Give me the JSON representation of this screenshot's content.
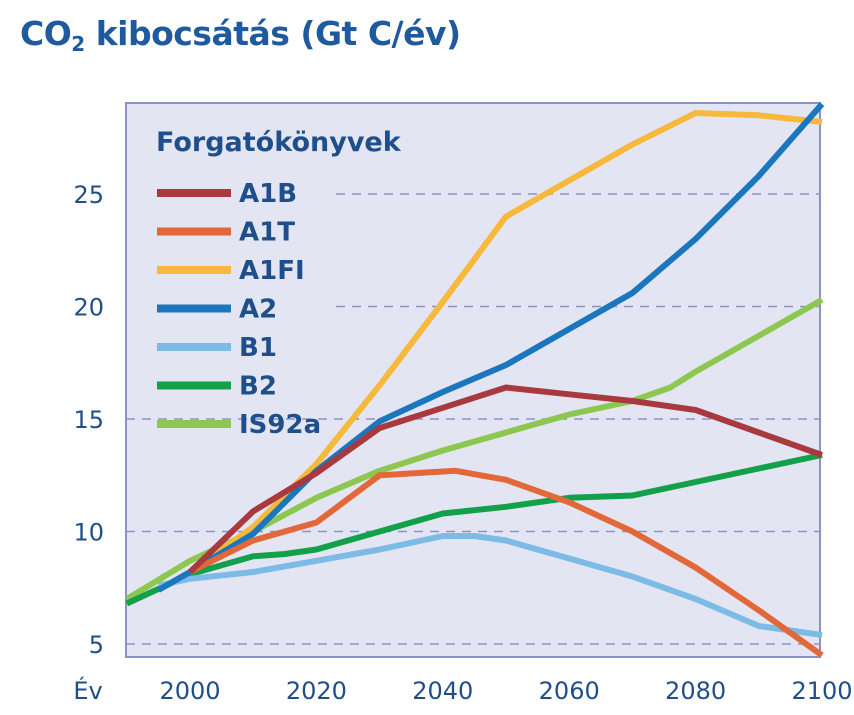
{
  "title_main": "CO",
  "title_sub": "2",
  "title_rest": " kibocsátás (Gt C/év)",
  "chart_data": {
    "type": "line",
    "title": "CO2 kibocsátás (Gt C/év)",
    "xlabel": "Év",
    "ylabel": "",
    "xlim": [
      1990,
      2100
    ],
    "ylim": [
      4.5,
      29
    ],
    "xticks": [
      2000,
      2020,
      2040,
      2060,
      2080,
      2100
    ],
    "yticks": [
      5,
      10,
      15,
      20,
      25
    ],
    "grid": "horizontal-dashed",
    "legend_title": "Forgatókönyvek",
    "legend_position": "top-left",
    "series": [
      {
        "name": "A1B",
        "color": "#a83a3f",
        "points": [
          [
            2000,
            8.2
          ],
          [
            2010,
            10.9
          ],
          [
            2020,
            12.6
          ],
          [
            2030,
            14.6
          ],
          [
            2040,
            15.5
          ],
          [
            2050,
            16.4
          ],
          [
            2060,
            16.1
          ],
          [
            2070,
            15.8
          ],
          [
            2080,
            15.4
          ],
          [
            2090,
            14.4
          ],
          [
            2100,
            13.4
          ]
        ]
      },
      {
        "name": "A1T",
        "color": "#e2683a",
        "points": [
          [
            2000,
            8.2
          ],
          [
            2010,
            9.6
          ],
          [
            2020,
            10.4
          ],
          [
            2030,
            12.5
          ],
          [
            2042,
            12.7
          ],
          [
            2050,
            12.3
          ],
          [
            2060,
            11.3
          ],
          [
            2070,
            10.0
          ],
          [
            2080,
            8.4
          ],
          [
            2090,
            6.5
          ],
          [
            2100,
            4.5
          ]
        ]
      },
      {
        "name": "A1FI",
        "color": "#f7b93c",
        "points": [
          [
            2000,
            8.2
          ],
          [
            2010,
            10.2
          ],
          [
            2020,
            13.0
          ],
          [
            2030,
            16.5
          ],
          [
            2040,
            20.2
          ],
          [
            2050,
            24.0
          ],
          [
            2060,
            25.6
          ],
          [
            2070,
            27.2
          ],
          [
            2080,
            28.6
          ],
          [
            2090,
            28.5
          ],
          [
            2100,
            28.2
          ]
        ]
      },
      {
        "name": "A2",
        "color": "#1a76bd",
        "points": [
          [
            1995,
            7.4
          ],
          [
            2000,
            8.2
          ],
          [
            2010,
            9.9
          ],
          [
            2020,
            12.7
          ],
          [
            2030,
            14.9
          ],
          [
            2040,
            16.2
          ],
          [
            2050,
            17.4
          ],
          [
            2060,
            19.0
          ],
          [
            2070,
            20.6
          ],
          [
            2080,
            23.0
          ],
          [
            2090,
            25.8
          ],
          [
            2100,
            29.0
          ]
        ]
      },
      {
        "name": "B1",
        "color": "#7cbbe6",
        "points": [
          [
            1995,
            7.6
          ],
          [
            2000,
            7.9
          ],
          [
            2010,
            8.2
          ],
          [
            2020,
            8.7
          ],
          [
            2030,
            9.2
          ],
          [
            2040,
            9.8
          ],
          [
            2045,
            9.8
          ],
          [
            2050,
            9.6
          ],
          [
            2060,
            8.8
          ],
          [
            2070,
            8.0
          ],
          [
            2080,
            7.0
          ],
          [
            2090,
            5.8
          ],
          [
            2100,
            5.4
          ]
        ]
      },
      {
        "name": "B2",
        "color": "#12a04a",
        "points": [
          [
            1990,
            6.8
          ],
          [
            2000,
            8.1
          ],
          [
            2010,
            8.9
          ],
          [
            2015,
            9.0
          ],
          [
            2020,
            9.2
          ],
          [
            2030,
            10.0
          ],
          [
            2040,
            10.8
          ],
          [
            2050,
            11.1
          ],
          [
            2060,
            11.5
          ],
          [
            2070,
            11.6
          ],
          [
            2080,
            12.2
          ],
          [
            2090,
            12.8
          ],
          [
            2100,
            13.4
          ]
        ]
      },
      {
        "name": "IS92a",
        "color": "#8cc850",
        "points": [
          [
            1990,
            7.0
          ],
          [
            2000,
            8.7
          ],
          [
            2010,
            10.0
          ],
          [
            2020,
            11.5
          ],
          [
            2030,
            12.7
          ],
          [
            2040,
            13.6
          ],
          [
            2050,
            14.4
          ],
          [
            2060,
            15.2
          ],
          [
            2070,
            15.8
          ],
          [
            2076,
            16.4
          ],
          [
            2080,
            17.1
          ],
          [
            2090,
            18.7
          ],
          [
            2100,
            20.3
          ]
        ]
      }
    ]
  }
}
